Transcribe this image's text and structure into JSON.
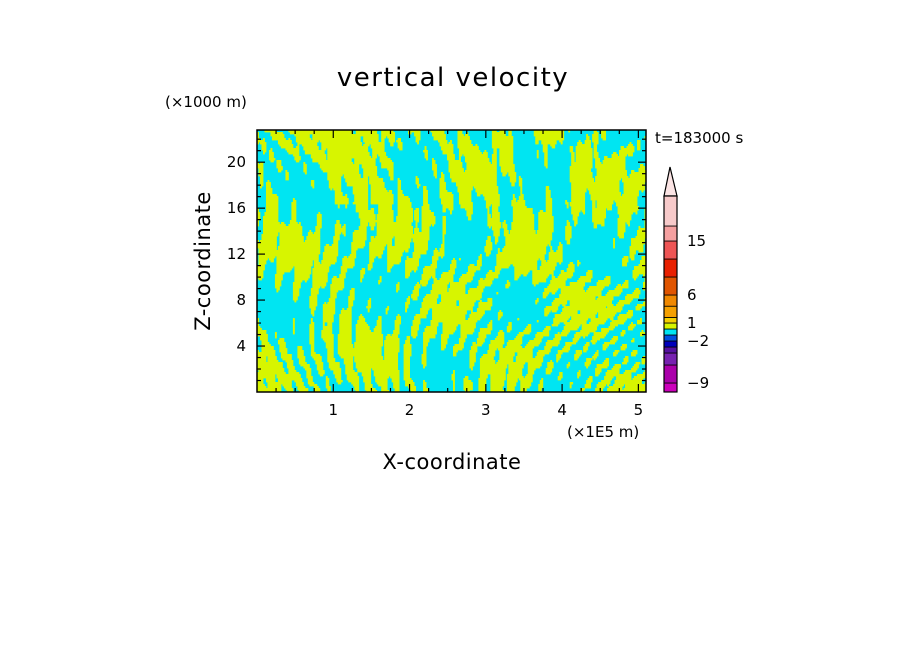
{
  "chart_data": {
    "type": "heatmap",
    "title": "vertical velocity",
    "xlabel": "X-coordinate",
    "ylabel": "Z-coordinate",
    "x_unit_label": "(×1E5 m)",
    "y_unit_label": "(×1000 m)",
    "time_label": "t=183000 s",
    "xlim": [
      0,
      5.1
    ],
    "ylim": [
      0,
      22.8
    ],
    "x_ticks": [
      1,
      2,
      3,
      4,
      5
    ],
    "x_tick_labels": [
      "1",
      "2",
      "3",
      "4",
      "5"
    ],
    "y_ticks": [
      4,
      8,
      12,
      16,
      20
    ],
    "y_tick_labels": [
      "4",
      "8",
      "12",
      "16",
      "20"
    ],
    "field_colors": {
      "negative": "#00e5f2",
      "positive": "#d7f500"
    },
    "colorbar": {
      "levels": [
        {
          "range": [
            -12,
            -9
          ],
          "color": "#cc00bb"
        },
        {
          "range": [
            -9,
            -6
          ],
          "color": "#aa00aa"
        },
        {
          "range": [
            -6,
            -4
          ],
          "color": "#7722b0"
        },
        {
          "range": [
            -4,
            -3
          ],
          "color": "#5511a0"
        },
        {
          "range": [
            -3,
            -2
          ],
          "color": "#0000bb"
        },
        {
          "range": [
            -2,
            -1
          ],
          "color": "#0050e0"
        },
        {
          "range": [
            -1,
            0
          ],
          "color": "#00e5f2"
        },
        {
          "range": [
            0,
            1
          ],
          "color": "#d7f500"
        },
        {
          "range": [
            1,
            2
          ],
          "color": "#f5d000"
        },
        {
          "range": [
            2,
            4
          ],
          "color": "#f5a000"
        },
        {
          "range": [
            4,
            6
          ],
          "color": "#f08800"
        },
        {
          "range": [
            6,
            9
          ],
          "color": "#e05500"
        },
        {
          "range": [
            9,
            12
          ],
          "color": "#e82000"
        },
        {
          "range": [
            12,
            15
          ],
          "color": "#ee5555"
        },
        {
          "range": [
            15,
            18
          ],
          "color": "#f5a0a0"
        },
        {
          "range": [
            18,
            24
          ],
          "color": "#f7caca"
        }
      ],
      "labels": [
        {
          "value": 15,
          "text": "15"
        },
        {
          "value": 6,
          "text": "6"
        },
        {
          "value": 1,
          "text": "1"
        },
        {
          "value": -2,
          "text": "−2"
        },
        {
          "value": -9,
          "text": "−9"
        }
      ],
      "arrow_color": "#fbe4e4"
    }
  }
}
